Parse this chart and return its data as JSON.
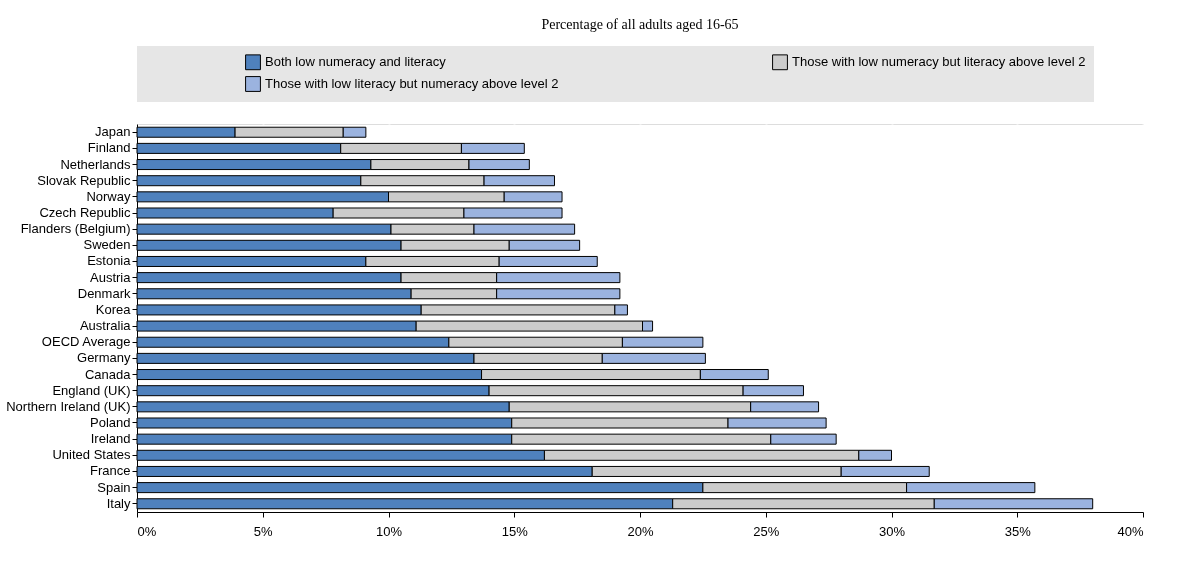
{
  "chart_data": {
    "type": "bar",
    "orientation": "horizontal",
    "stacked": true,
    "title": "Percentage of all adults aged 16-65",
    "categories": [
      "Japan",
      "Finland",
      "Netherlands",
      "Slovak Republic",
      "Norway",
      "Czech Republic",
      "Flanders (Belgium)",
      "Sweden",
      "Estonia",
      "Austria",
      "Denmark",
      "Korea",
      "Australia",
      "OECD Average",
      "Germany",
      "Canada",
      "England (UK)",
      "Northern Ireland (UK)",
      "Poland",
      "Ireland",
      "United States",
      "France",
      "Spain",
      "Italy"
    ],
    "series": [
      {
        "name": "Both low numeracy and literacy",
        "color": "#4f81bd",
        "values": [
          3.9,
          8.1,
          9.3,
          8.9,
          10.0,
          7.8,
          10.1,
          10.5,
          9.1,
          10.5,
          10.9,
          11.3,
          11.1,
          12.4,
          13.4,
          13.7,
          14.0,
          14.8,
          14.9,
          14.9,
          16.2,
          18.1,
          22.5,
          21.3
        ]
      },
      {
        "name": "Those with low numeracy but literacy above level 2",
        "color": "#cccccc",
        "values": [
          4.3,
          4.8,
          3.9,
          4.9,
          4.6,
          5.2,
          3.3,
          4.3,
          5.3,
          3.8,
          3.4,
          7.7,
          9.0,
          6.9,
          5.1,
          8.7,
          10.1,
          9.6,
          8.6,
          10.3,
          12.5,
          9.9,
          8.1,
          10.4
        ]
      },
      {
        "name": "Those with low literacy but  numeracy above level 2",
        "color": "#9bb3df",
        "values": [
          0.9,
          2.5,
          2.4,
          2.8,
          2.3,
          3.9,
          4.0,
          2.8,
          3.9,
          4.9,
          4.9,
          0.5,
          0.4,
          3.2,
          4.1,
          2.7,
          2.4,
          2.7,
          3.9,
          2.6,
          1.3,
          3.5,
          5.1,
          6.3
        ]
      }
    ],
    "xlim": [
      0,
      40
    ],
    "xticks": [
      {
        "value": 0,
        "label": "0%"
      },
      {
        "value": 5,
        "label": "5%"
      },
      {
        "value": 10,
        "label": "10%"
      },
      {
        "value": 15,
        "label": "15%"
      },
      {
        "value": 20,
        "label": "20%"
      },
      {
        "value": 25,
        "label": "25%"
      },
      {
        "value": 30,
        "label": "30%"
      },
      {
        "value": 35,
        "label": "35%"
      },
      {
        "value": 40,
        "label": "40%"
      }
    ],
    "grid": "x",
    "legend": "top"
  }
}
